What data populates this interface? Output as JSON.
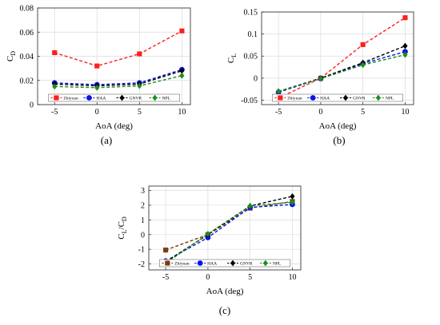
{
  "chart_data": [
    {
      "id": "a",
      "type": "line",
      "panel_label": "(a)",
      "title": "",
      "xlabel": "AoA (deg)",
      "ylabel": "C",
      "ylabel_sub": "D",
      "x": [
        -5,
        0,
        5,
        10
      ],
      "xticks": [
        "-5",
        "0",
        "5",
        "10"
      ],
      "xlim": [
        -7,
        11
      ],
      "ylim": [
        0,
        0.08
      ],
      "yticks": [
        "0",
        "0.02",
        "0.04",
        "0.06",
        "0.08"
      ],
      "ytick_values": [
        0,
        0.02,
        0.04,
        0.06,
        0.08
      ],
      "grid": true,
      "legend_position": "bottom",
      "series": [
        {
          "name": "Zhiyuan",
          "color": "#ff1e1e",
          "marker": "square",
          "values": [
            0.043,
            0.032,
            0.042,
            0.061
          ]
        },
        {
          "name": "HAA",
          "color": "#0a14e6",
          "marker": "circle",
          "values": [
            0.018,
            0.0165,
            0.018,
            0.029
          ]
        },
        {
          "name": "GNVR",
          "color": "#000000",
          "marker": "diamond",
          "values": [
            0.017,
            0.0155,
            0.017,
            0.028
          ]
        },
        {
          "name": "NPL",
          "color": "#1e8c1e",
          "marker": "diamond",
          "values": [
            0.015,
            0.014,
            0.0155,
            0.024
          ]
        }
      ]
    },
    {
      "id": "b",
      "type": "line",
      "panel_label": "(b)",
      "title": "",
      "xlabel": "AoA (deg)",
      "ylabel": "C",
      "ylabel_sub": "L",
      "x": [
        -5,
        0,
        5,
        10
      ],
      "xticks": [
        "-5",
        "0",
        "5",
        "10"
      ],
      "xlim": [
        -7,
        11
      ],
      "ylim": [
        -0.06,
        0.15
      ],
      "yticks": [
        "-0.05",
        "0",
        "0.05",
        "0.1",
        "0.15"
      ],
      "ytick_values": [
        -0.05,
        0,
        0.05,
        0.1,
        0.15
      ],
      "grid": true,
      "legend_position": "bottom",
      "series": [
        {
          "name": "Zhiyuan",
          "color": "#ff1e1e",
          "marker": "square",
          "values": [
            -0.045,
            0.0,
            0.076,
            0.137
          ]
        },
        {
          "name": "HAA",
          "color": "#0a14e6",
          "marker": "circle",
          "values": [
            -0.032,
            -0.001,
            0.033,
            0.06
          ]
        },
        {
          "name": "GNVR",
          "color": "#000000",
          "marker": "diamond",
          "values": [
            -0.03,
            0.0,
            0.035,
            0.073
          ]
        },
        {
          "name": "NPL",
          "color": "#1e8c1e",
          "marker": "diamond",
          "values": [
            -0.03,
            -0.001,
            0.03,
            0.053
          ]
        }
      ]
    },
    {
      "id": "c",
      "type": "line",
      "panel_label": "(c)",
      "title": "",
      "xlabel": "AoA (deg)",
      "ylabel": "C",
      "ylabel_sub": "L",
      "ylabel_mid": "/C",
      "ylabel_sub2": "D",
      "x": [
        -5,
        0,
        5,
        10
      ],
      "xticks": [
        "-5",
        "0",
        "5",
        "10"
      ],
      "xlim": [
        -7,
        11
      ],
      "ylim": [
        -2.4,
        3.3
      ],
      "yticks": [
        "-2",
        "-1",
        "0",
        "1",
        "2",
        "3"
      ],
      "ytick_values": [
        -2,
        -1,
        0,
        1,
        2,
        3
      ],
      "grid": true,
      "legend_position": "bottom",
      "series": [
        {
          "name": "Zhiyuan",
          "color": "#7a3c14",
          "marker": "square",
          "values": [
            -1.05,
            0.0,
            1.8,
            2.25
          ]
        },
        {
          "name": "HAA",
          "color": "#0a14e6",
          "marker": "circle",
          "values": [
            -1.8,
            -0.2,
            1.85,
            2.05
          ]
        },
        {
          "name": "GNVR",
          "color": "#000000",
          "marker": "diamond",
          "values": [
            -1.85,
            0.0,
            1.95,
            2.6
          ]
        },
        {
          "name": "NPL",
          "color": "#1e8c1e",
          "marker": "diamond",
          "values": [
            -1.95,
            0.05,
            1.95,
            2.2
          ]
        }
      ]
    }
  ]
}
